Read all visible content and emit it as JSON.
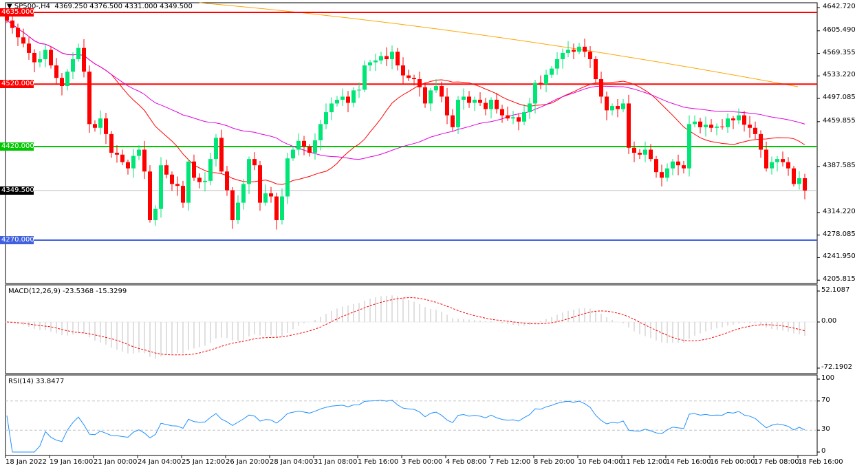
{
  "header": {
    "symbol": "SP500-,H4",
    "open": "4369.250",
    "high": "4376.500",
    "low": "4331.000",
    "close": "4349.500"
  },
  "price_axis": [
    "4642.720",
    "4605.490",
    "4569.355",
    "4533.220",
    "4497.085",
    "4459.855",
    "4387.585",
    "4314.220",
    "4278.085",
    "4241.950",
    "4205.815"
  ],
  "levels": [
    {
      "label": "4635.000",
      "price": 4635,
      "color": "#ff0000"
    },
    {
      "label": "4520.000",
      "price": 4520,
      "color": "#ff0000"
    },
    {
      "label": "4420.000",
      "price": 4420,
      "color": "#00c800"
    },
    {
      "label": "4270.000",
      "price": 4270,
      "color": "#4060e0"
    }
  ],
  "current_price": {
    "label": "4349.500",
    "price": 4349.5
  },
  "macd": {
    "title": "MACD(12,26,9) -23.5368 -15.3299",
    "axis": [
      "52.1087",
      "0.00",
      "-72.1902"
    ]
  },
  "rsi": {
    "title": "RSI(14) 33.8477",
    "axis": [
      "100",
      "70",
      "30",
      "0"
    ]
  },
  "time_axis": [
    "18 Jan 2022",
    "19 Jan 16:00",
    "21 Jan 00:00",
    "24 Jan 04:00",
    "25 Jan 12:00",
    "26 Jan 20:00",
    "28 Jan 04:00",
    "31 Jan 08:00",
    "1 Feb 16:00",
    "3 Feb 00:00",
    "4 Feb 08:00",
    "7 Feb 12:00",
    "8 Feb 20:00",
    "10 Feb 04:00",
    "11 Feb 12:00",
    "14 Feb 16:00",
    "16 Feb 00:00",
    "17 Feb 08:00",
    "18 Feb 16:00"
  ],
  "colors": {
    "up": "#00e676",
    "down": "#ff0000",
    "ma_fast": "#ff0000",
    "ma_mid": "#e000e0",
    "ma_slow": "#ffa500",
    "rsi": "#1e90ff",
    "macd_signal": "#ff0000",
    "macd_hist": "#c0c0c0"
  },
  "chart_data": {
    "type": "candlestick",
    "timeframe": "H4",
    "close": [
      4622,
      4610,
      4595,
      4585,
      4570,
      4555,
      4560,
      4575,
      4550,
      4530,
      4517,
      4540,
      4560,
      4578,
      4540,
      4456,
      4450,
      4465,
      4440,
      4410,
      4407,
      4395,
      4385,
      4405,
      4415,
      4380,
      4302,
      4320,
      4390,
      4375,
      4360,
      4357,
      4330,
      4396,
      4370,
      4363,
      4365,
      4400,
      4434,
      4380,
      4350,
      4302,
      4330,
      4360,
      4400,
      4390,
      4330,
      4345,
      4340,
      4302,
      4340,
      4401,
      4415,
      4429,
      4420,
      4410,
      4430,
      4456,
      4475,
      4489,
      4495,
      4500,
      4490,
      4510,
      4511,
      4550,
      4555,
      4558,
      4565,
      4560,
      4572,
      4550,
      4534,
      4530,
      4528,
      4515,
      4489,
      4510,
      4517,
      4500,
      4470,
      4451,
      4495,
      4500,
      4490,
      4495,
      4490,
      4480,
      4495,
      4480,
      4470,
      4465,
      4467,
      4460,
      4475,
      4489,
      4522,
      4520,
      4535,
      4545,
      4560,
      4570,
      4575,
      4572,
      4580,
      4572,
      4560,
      4528,
      4500,
      4478,
      4485,
      4480,
      4489,
      4418,
      4410,
      4407,
      4415,
      4400,
      4379,
      4370,
      4385,
      4396,
      4390,
      4385,
      4456,
      4460,
      4451,
      4455,
      4450,
      4452,
      4451,
      4465,
      4462,
      4470,
      4455,
      4450,
      4440,
      4415,
      4385,
      4395,
      4400,
      4395,
      4385,
      4360,
      4369.25,
      4349.5
    ],
    "ylim": [
      4205.815,
      4642.72
    ]
  }
}
